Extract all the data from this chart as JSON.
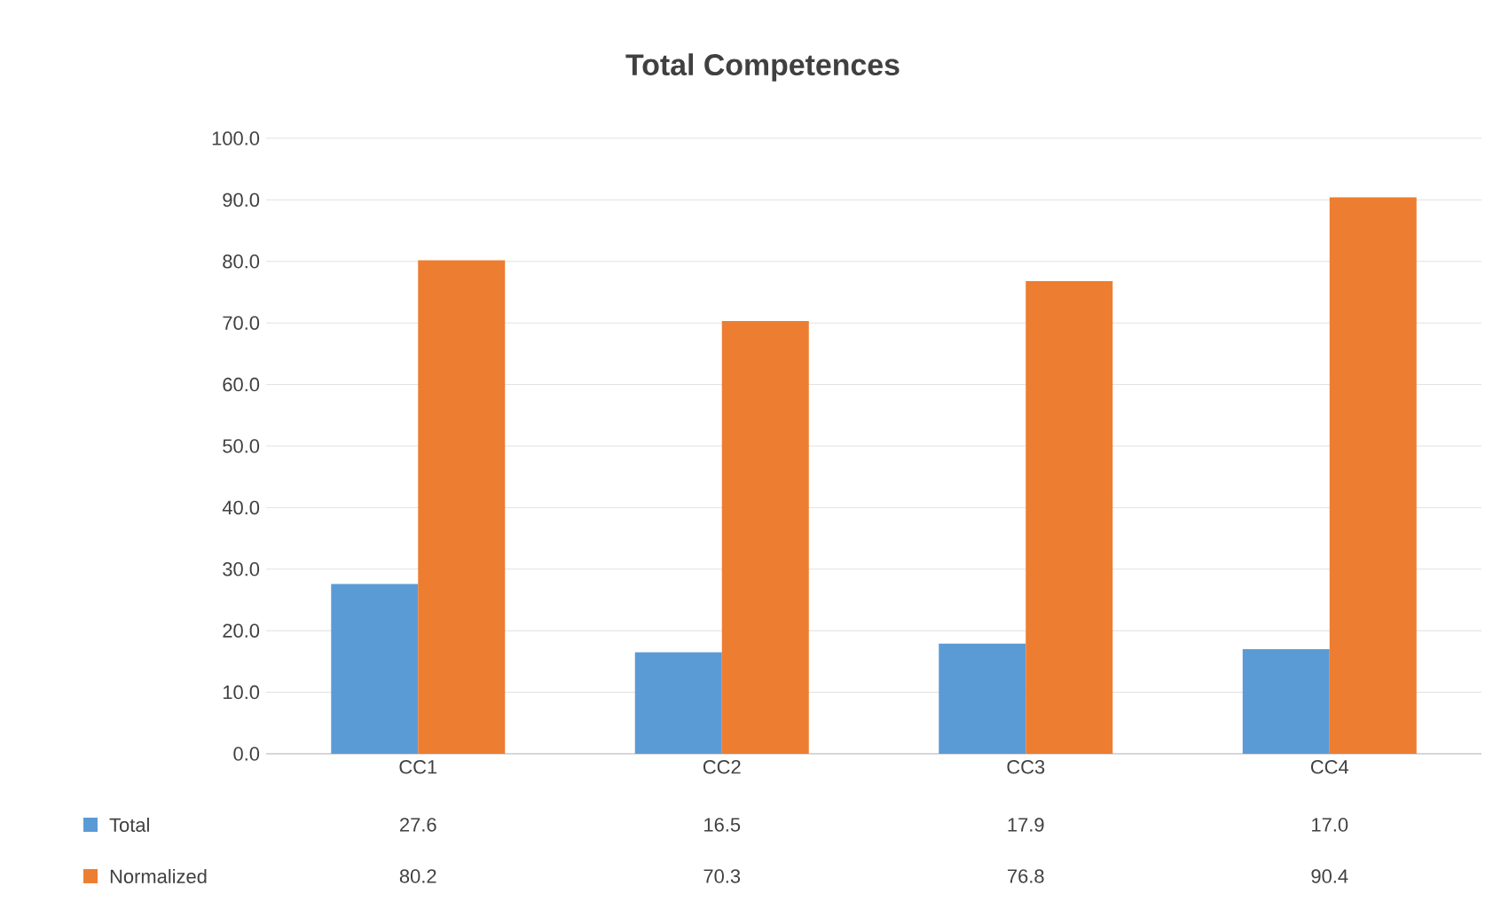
{
  "chart_data": {
    "type": "bar",
    "title": "Total Competences",
    "categories": [
      "CC1",
      "CC2",
      "CC3",
      "CC4"
    ],
    "series": [
      {
        "name": "Total",
        "color": "#5b9bd5",
        "values": [
          27.6,
          16.5,
          17.9,
          17.0
        ],
        "value_labels": [
          "27.6",
          "16.5",
          "17.9",
          "17.0"
        ]
      },
      {
        "name": "Normalized",
        "color": "#ed7d31",
        "values": [
          80.2,
          70.3,
          76.8,
          90.4
        ],
        "value_labels": [
          "80.2",
          "70.3",
          "76.8",
          "90.4"
        ]
      }
    ],
    "ylim": [
      0,
      100
    ],
    "yticks": [
      {
        "value": 0,
        "label": "0.0"
      },
      {
        "value": 10,
        "label": "10.0"
      },
      {
        "value": 20,
        "label": "20.0"
      },
      {
        "value": 30,
        "label": "30.0"
      },
      {
        "value": 40,
        "label": "40.0"
      },
      {
        "value": 50,
        "label": "50.0"
      },
      {
        "value": 60,
        "label": "60.0"
      },
      {
        "value": 70,
        "label": "70.0"
      },
      {
        "value": 80,
        "label": "80.0"
      },
      {
        "value": 90,
        "label": "90.0"
      },
      {
        "value": 100,
        "label": "100.0"
      }
    ],
    "grid": "y",
    "legend": "bottom"
  }
}
